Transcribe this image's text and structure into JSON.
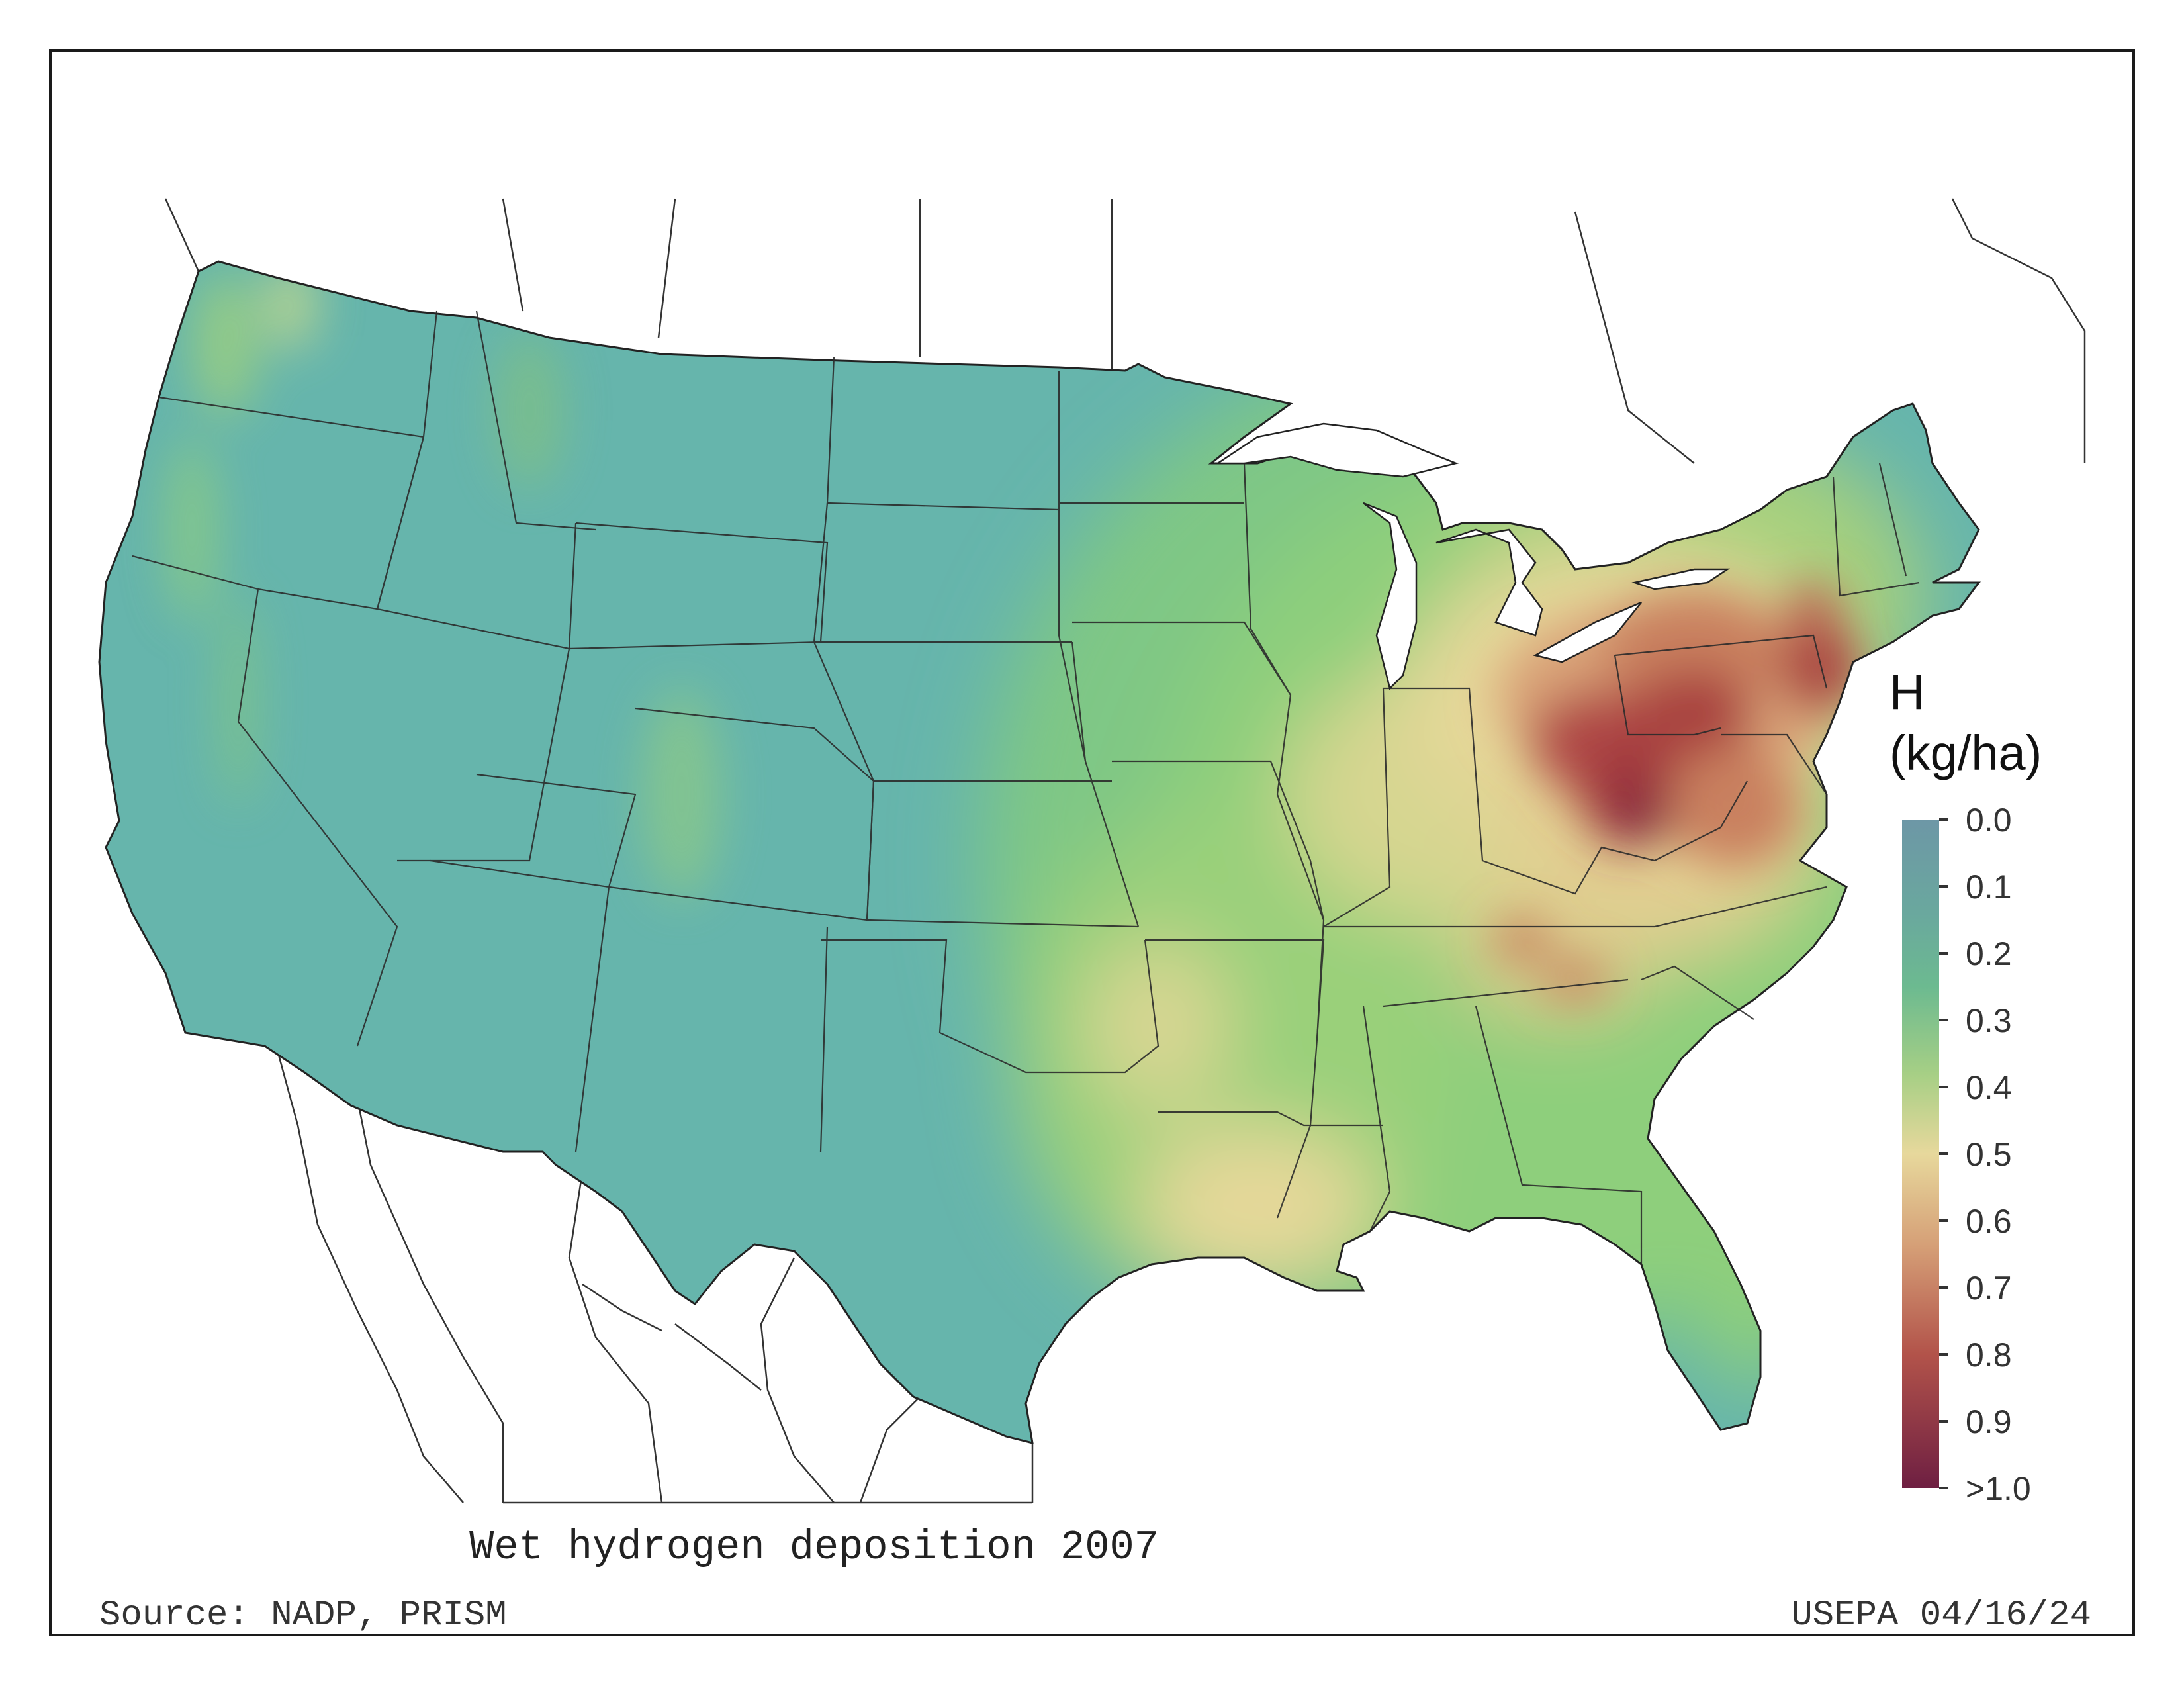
{
  "map": {
    "title": "Wet hydrogen deposition 2007",
    "source": "Source: NADP, PRISM",
    "credit": "USEPA 04/16/24"
  },
  "legend": {
    "title_line1": "H",
    "title_line2": "(kg/ha)",
    "ticks": [
      "0.0",
      "0.1",
      "0.2",
      "0.3",
      "0.4",
      "0.5",
      "0.6",
      "0.7",
      "0.8",
      "0.9",
      ">1.0"
    ],
    "colors": [
      "#6d97a6",
      "#6aa89e",
      "#6cba90",
      "#a6cf85",
      "#e7d89c",
      "#d59e76",
      "#b2534a",
      "#6e1f42"
    ]
  },
  "colors": {
    "low": "#66b5ac",
    "green": "#8ecf7c",
    "yellow": "#e6d89a",
    "tan": "#d9a378",
    "red": "#b04a46",
    "dark": "#6b1d3f"
  }
}
